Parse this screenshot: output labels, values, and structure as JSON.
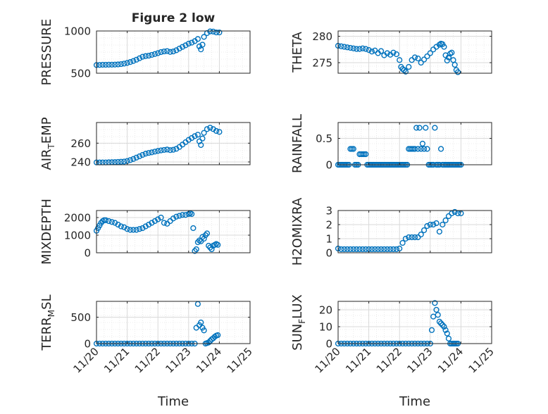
{
  "figure": {
    "title": "Figure 2 low",
    "xlabel": "Time",
    "xtick_labels": [
      "11/20",
      "11/21",
      "11/22",
      "11/23",
      "11/24",
      "11/25"
    ]
  },
  "colors": {
    "marker": "#0072BD",
    "axis": "#262626",
    "grid": "#d9d9d9",
    "background": "#ffffff"
  },
  "chart_data": [
    {
      "type": "scatter",
      "ylabel": "PRESSURE",
      "xlim": [
        0,
        5
      ],
      "ylim": [
        500,
        1000
      ],
      "yticks": [
        500,
        1000
      ],
      "grid": true,
      "x": [
        0,
        0.1,
        0.2,
        0.3,
        0.4,
        0.5,
        0.6,
        0.7,
        0.8,
        0.9,
        1.0,
        1.1,
        1.2,
        1.3,
        1.4,
        1.5,
        1.6,
        1.7,
        1.8,
        1.9,
        2.0,
        2.1,
        2.2,
        2.3,
        2.4,
        2.5,
        2.6,
        2.7,
        2.8,
        2.9,
        3.0,
        3.1,
        3.2,
        3.3,
        3.35,
        3.4,
        3.45,
        3.5,
        3.6,
        3.7,
        3.8,
        3.9,
        4.0
      ],
      "y": [
        597,
        598,
        600,
        600,
        601,
        601,
        602,
        604,
        608,
        614,
        622,
        632,
        645,
        660,
        677,
        695,
        703,
        708,
        717,
        727,
        738,
        750,
        758,
        762,
        752,
        758,
        772,
        792,
        812,
        830,
        850,
        862,
        880,
        905,
        818,
        782,
        838,
        930,
        975,
        995,
        993,
        983,
        983
      ]
    },
    {
      "type": "scatter",
      "ylabel": "THETA",
      "xlim": [
        0,
        5
      ],
      "ylim": [
        273,
        281
      ],
      "yticks": [
        275,
        280
      ],
      "grid": true,
      "x": [
        0,
        0.1,
        0.2,
        0.3,
        0.4,
        0.5,
        0.6,
        0.7,
        0.8,
        0.9,
        1.0,
        1.1,
        1.2,
        1.3,
        1.4,
        1.5,
        1.6,
        1.7,
        1.8,
        1.9,
        2.0,
        2.05,
        2.1,
        2.15,
        2.2,
        2.3,
        2.4,
        2.5,
        2.6,
        2.7,
        2.8,
        2.9,
        3.0,
        3.1,
        3.2,
        3.3,
        3.35,
        3.4,
        3.45,
        3.5,
        3.55,
        3.6,
        3.65,
        3.7,
        3.75,
        3.8,
        3.85,
        3.9
      ],
      "y": [
        278.2,
        278.1,
        278.0,
        277.9,
        277.8,
        277.7,
        277.6,
        277.6,
        277.7,
        277.6,
        277.4,
        277.1,
        277.3,
        276.8,
        277.2,
        276.4,
        276.8,
        276.5,
        276.9,
        276.6,
        275.5,
        274.2,
        273.8,
        273.6,
        273.3,
        274.2,
        275.5,
        276.0,
        275.8,
        275.0,
        275.6,
        276.2,
        276.8,
        277.5,
        278.0,
        278.4,
        278.6,
        278.5,
        278.0,
        276.4,
        275.4,
        276.0,
        276.7,
        276.9,
        275.5,
        274.6,
        273.6,
        273.2
      ]
    },
    {
      "type": "scatter",
      "ylabel": "AIR_TEMP",
      "xlim": [
        0,
        5
      ],
      "ylim": [
        237,
        282
      ],
      "yticks": [
        240,
        260
      ],
      "grid": true,
      "x": [
        0,
        0.1,
        0.2,
        0.3,
        0.4,
        0.5,
        0.6,
        0.7,
        0.8,
        0.9,
        1.0,
        1.1,
        1.2,
        1.3,
        1.4,
        1.5,
        1.6,
        1.7,
        1.8,
        1.9,
        2.0,
        2.1,
        2.2,
        2.3,
        2.4,
        2.5,
        2.6,
        2.7,
        2.8,
        2.9,
        3.0,
        3.1,
        3.2,
        3.3,
        3.35,
        3.4,
        3.45,
        3.5,
        3.6,
        3.7,
        3.8,
        3.9,
        4.0
      ],
      "y": [
        239.5,
        239.5,
        239.5,
        239.5,
        239.6,
        239.7,
        239.8,
        240.0,
        240.2,
        240.4,
        241.0,
        242.0,
        243.2,
        244.6,
        246.0,
        247.5,
        248.8,
        249.6,
        250.2,
        251.0,
        251.7,
        252.3,
        252.8,
        253.2,
        252.6,
        253.0,
        254.0,
        256.0,
        258.5,
        261.0,
        263.5,
        265.5,
        267.5,
        269.0,
        262.0,
        258.0,
        265.0,
        271.0,
        275.0,
        276.5,
        275.0,
        273.0,
        272.0
      ]
    },
    {
      "type": "scatter",
      "ylabel": "RAINFALL",
      "xlim": [
        0,
        5
      ],
      "ylim": [
        0,
        0.8
      ],
      "yticks": [
        0,
        0.5
      ],
      "grid": true,
      "x": [
        0,
        0.05,
        0.1,
        0.15,
        0.2,
        0.25,
        0.3,
        0.35,
        0.4,
        0.45,
        0.5,
        0.55,
        0.6,
        0.65,
        0.7,
        0.75,
        0.8,
        0.85,
        0.9,
        0.95,
        1.0,
        1.05,
        1.1,
        1.15,
        1.2,
        1.25,
        1.3,
        1.35,
        1.4,
        1.45,
        1.5,
        1.55,
        1.6,
        1.65,
        1.7,
        1.75,
        1.8,
        1.85,
        1.9,
        1.95,
        2.0,
        2.05,
        2.1,
        2.15,
        2.2,
        2.25,
        2.3,
        2.35,
        2.4,
        2.45,
        2.5,
        2.55,
        2.6,
        2.65,
        2.7,
        2.75,
        2.8,
        2.85,
        2.9,
        2.95,
        3.0,
        3.05,
        3.1,
        3.15,
        3.2,
        3.25,
        3.3,
        3.35,
        3.4,
        3.45,
        3.5,
        3.55,
        3.6,
        3.65,
        3.7,
        3.75,
        3.8,
        3.85,
        3.9,
        3.95,
        4.0
      ],
      "y": [
        0,
        0,
        0,
        0,
        0,
        0,
        0,
        0,
        0.3,
        0.3,
        0.3,
        0,
        0,
        0,
        0.2,
        0.2,
        0.2,
        0.2,
        0.2,
        0,
        0,
        0,
        0,
        0,
        0,
        0,
        0,
        0,
        0,
        0,
        0,
        0,
        0,
        0,
        0,
        0,
        0,
        0,
        0,
        0,
        0,
        0,
        0,
        0,
        0,
        0,
        0.3,
        0.3,
        0.3,
        0.3,
        0.3,
        0.7,
        0.3,
        0.7,
        0.3,
        0.4,
        0.3,
        0.7,
        0.3,
        0,
        0,
        0,
        0,
        0.7,
        0,
        0,
        0,
        0.3,
        0,
        0,
        0,
        0,
        0,
        0,
        0,
        0,
        0,
        0,
        0,
        0,
        0
      ]
    },
    {
      "type": "scatter",
      "ylabel": "MIXDEPTH",
      "xlim": [
        0,
        5
      ],
      "ylim": [
        0,
        2400
      ],
      "yticks": [
        0,
        1000,
        2000
      ],
      "grid": true,
      "x": [
        0,
        0.05,
        0.1,
        0.15,
        0.2,
        0.25,
        0.3,
        0.4,
        0.5,
        0.6,
        0.7,
        0.8,
        0.9,
        1.0,
        1.1,
        1.2,
        1.3,
        1.4,
        1.5,
        1.6,
        1.7,
        1.8,
        1.9,
        2.0,
        2.1,
        2.2,
        2.3,
        2.4,
        2.5,
        2.6,
        2.7,
        2.8,
        2.9,
        3.0,
        3.05,
        3.1,
        3.15,
        3.2,
        3.25,
        3.3,
        3.35,
        3.4,
        3.45,
        3.5,
        3.55,
        3.6,
        3.65,
        3.7,
        3.75,
        3.8,
        3.85,
        3.9,
        3.95
      ],
      "y": [
        1250,
        1400,
        1550,
        1700,
        1800,
        1850,
        1850,
        1800,
        1750,
        1700,
        1600,
        1500,
        1450,
        1350,
        1300,
        1300,
        1300,
        1350,
        1400,
        1500,
        1600,
        1700,
        1800,
        1900,
        2000,
        1700,
        1650,
        1800,
        1950,
        2050,
        2100,
        2150,
        2150,
        2200,
        2250,
        2200,
        1400,
        100,
        200,
        600,
        700,
        650,
        900,
        800,
        1000,
        1100,
        400,
        300,
        200,
        400,
        450,
        500,
        450
      ]
    },
    {
      "type": "scatter",
      "ylabel": "H2OMIXRA",
      "xlim": [
        0,
        5
      ],
      "ylim": [
        0,
        3
      ],
      "yticks": [
        0,
        1,
        2,
        3
      ],
      "grid": true,
      "x": [
        0,
        0.1,
        0.2,
        0.3,
        0.4,
        0.5,
        0.6,
        0.7,
        0.8,
        0.9,
        1.0,
        1.1,
        1.2,
        1.3,
        1.4,
        1.5,
        1.6,
        1.7,
        1.8,
        1.9,
        2.0,
        2.1,
        2.2,
        2.3,
        2.4,
        2.5,
        2.6,
        2.7,
        2.8,
        2.9,
        3.0,
        3.1,
        3.2,
        3.3,
        3.4,
        3.5,
        3.6,
        3.7,
        3.8,
        3.9,
        4.0
      ],
      "y": [
        0.3,
        0.25,
        0.25,
        0.25,
        0.25,
        0.25,
        0.25,
        0.25,
        0.25,
        0.25,
        0.25,
        0.25,
        0.25,
        0.25,
        0.25,
        0.25,
        0.25,
        0.25,
        0.25,
        0.25,
        0.3,
        0.7,
        1.0,
        1.1,
        1.1,
        1.1,
        1.1,
        1.3,
        1.6,
        1.9,
        2.0,
        2.0,
        2.1,
        1.5,
        2.0,
        2.3,
        2.6,
        2.8,
        2.9,
        2.8,
        2.8
      ]
    },
    {
      "type": "scatter",
      "ylabel": "TERR_MSL",
      "xlim": [
        0,
        5
      ],
      "ylim": [
        0,
        800
      ],
      "yticks": [
        0,
        500
      ],
      "grid": true,
      "x": [
        0,
        0.1,
        0.2,
        0.3,
        0.4,
        0.5,
        0.6,
        0.7,
        0.8,
        0.9,
        1.0,
        1.1,
        1.2,
        1.3,
        1.4,
        1.5,
        1.6,
        1.7,
        1.8,
        1.9,
        2.0,
        2.1,
        2.2,
        2.3,
        2.4,
        2.5,
        2.6,
        2.7,
        2.8,
        2.9,
        3.0,
        3.1,
        3.2,
        3.25,
        3.3,
        3.35,
        3.4,
        3.45,
        3.5,
        3.55,
        3.6,
        3.65,
        3.7,
        3.75,
        3.8,
        3.85,
        3.9,
        3.95
      ],
      "y": [
        0,
        0,
        0,
        0,
        0,
        0,
        0,
        0,
        0,
        0,
        0,
        0,
        0,
        0,
        0,
        0,
        0,
        0,
        0,
        0,
        0,
        0,
        0,
        0,
        0,
        0,
        0,
        0,
        0,
        0,
        0,
        0,
        0,
        300,
        750,
        350,
        400,
        300,
        250,
        0,
        10,
        20,
        50,
        80,
        100,
        130,
        150,
        160
      ]
    },
    {
      "type": "scatter",
      "ylabel": "SUN_FLUX",
      "xlim": [
        0,
        5
      ],
      "ylim": [
        0,
        25
      ],
      "yticks": [
        0,
        10,
        20
      ],
      "grid": true,
      "x": [
        0,
        0.1,
        0.2,
        0.3,
        0.4,
        0.5,
        0.6,
        0.7,
        0.8,
        0.9,
        1.0,
        1.1,
        1.2,
        1.3,
        1.4,
        1.5,
        1.6,
        1.7,
        1.8,
        1.9,
        2.0,
        2.1,
        2.2,
        2.3,
        2.4,
        2.5,
        2.6,
        2.7,
        2.8,
        2.9,
        3.0,
        3.05,
        3.1,
        3.15,
        3.2,
        3.25,
        3.3,
        3.35,
        3.4,
        3.45,
        3.5,
        3.55,
        3.6,
        3.65,
        3.7,
        3.75,
        3.8,
        3.85,
        3.9
      ],
      "y": [
        0,
        0,
        0,
        0,
        0,
        0,
        0,
        0,
        0,
        0,
        0,
        0,
        0,
        0,
        0,
        0,
        0,
        0,
        0,
        0,
        0,
        0,
        0,
        0,
        0,
        0,
        0,
        0,
        0,
        0,
        0,
        8,
        16,
        24,
        20,
        17,
        13,
        12,
        11,
        10,
        8,
        6,
        3,
        0,
        0,
        0,
        0,
        0,
        0
      ]
    }
  ]
}
